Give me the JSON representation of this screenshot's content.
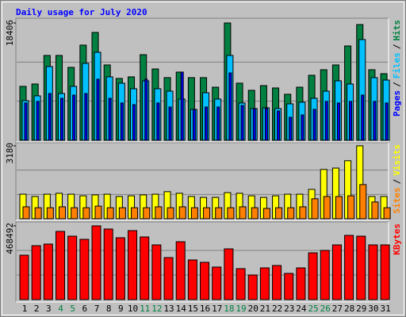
{
  "chart_data": {
    "type": "bar",
    "title": "Daily usage for July 2020",
    "separator": "/",
    "categories": [
      "1",
      "2",
      "3",
      "4",
      "5",
      "6",
      "7",
      "8",
      "9",
      "10",
      "11",
      "12",
      "13",
      "14",
      "15",
      "16",
      "17",
      "18",
      "19",
      "20",
      "21",
      "22",
      "23",
      "24",
      "25",
      "26",
      "27",
      "28",
      "29",
      "30",
      "31"
    ],
    "category_colors": [
      "#000000",
      "#000000",
      "#000000",
      "#008040",
      "#008040",
      "#000000",
      "#000000",
      "#000000",
      "#000000",
      "#000000",
      "#008040",
      "#008040",
      "#000000",
      "#000000",
      "#000000",
      "#000000",
      "#000000",
      "#008040",
      "#008040",
      "#000000",
      "#000000",
      "#000000",
      "#000000",
      "#000000",
      "#008040",
      "#008040",
      "#000000",
      "#000000",
      "#000000",
      "#000000",
      "#000000"
    ],
    "panels": [
      {
        "ylim": [
          0,
          18406
        ],
        "yticks": [
          18406
        ],
        "series": [
          {
            "name": "Hits",
            "color": "#008040",
            "values": [
              8460,
              8830,
              13310,
              13310,
              11440,
              14930,
              16920,
              11820,
              9700,
              9950,
              13430,
              11190,
              9830,
              10700,
              9830,
              9830,
              8330,
              18406,
              8960,
              7840,
              8580,
              8210,
              7220,
              8330,
              10200,
              11070,
              11820,
              14800,
              18160,
              11070,
              10450
            ]
          },
          {
            "name": "Files",
            "color": "#00c0ff",
            "values": [
              6220,
              6970,
              11570,
              7340,
              8460,
              12070,
              13810,
              9950,
              8960,
              8090,
              9330,
              8090,
              7710,
              6470,
              4850,
              7460,
              6470,
              13310,
              5850,
              4980,
              5100,
              4980,
              5720,
              5970,
              6590,
              7710,
              9330,
              8830,
              15800,
              9830,
              9450
            ]
          },
          {
            "name": "Pages",
            "color": "#0000ff",
            "values": [
              5850,
              6100,
              7340,
              6590,
              7090,
              7340,
              9580,
              6590,
              5850,
              5600,
              9580,
              5850,
              5220,
              10700,
              4850,
              5220,
              5220,
              10570,
              5470,
              4980,
              4980,
              4600,
              3610,
              3980,
              4850,
              6100,
              5850,
              6100,
              7090,
              6100,
              5850
            ]
          }
        ]
      },
      {
        "ylim": [
          0,
          3180
        ],
        "yticks": [
          3180
        ],
        "series": [
          {
            "name": "Visits",
            "color": "#ffff00",
            "values": [
              1070,
              970,
              1070,
              1110,
              1070,
              1000,
              1040,
              1070,
              970,
              1000,
              1040,
              1070,
              1180,
              1110,
              970,
              930,
              930,
              1140,
              1110,
              1000,
              930,
              1000,
              1070,
              1070,
              1280,
              2150,
              2210,
              2530,
              3180,
              970,
              970
            ]
          },
          {
            "name": "Sites",
            "color": "#ff8000",
            "values": [
              520,
              480,
              480,
              520,
              480,
              480,
              550,
              480,
              480,
              480,
              480,
              520,
              480,
              520,
              480,
              480,
              480,
              480,
              520,
              480,
              450,
              480,
              480,
              520,
              870,
              970,
              970,
              1000,
              1490,
              730,
              480
            ]
          }
        ]
      },
      {
        "ylim": [
          0,
          468492
        ],
        "yticks": [
          468492
        ],
        "series": [
          {
            "name": "KBytes",
            "color": "#ff0000",
            "values": [
              282100,
              342600,
              352700,
              433300,
              403000,
              382900,
              468492,
              448400,
              393000,
              438300,
              398000,
              347600,
              267000,
              367800,
              251900,
              236800,
              206600,
              322400,
              196500,
              156200,
              201500,
              216600,
              166300,
              201500,
              297200,
              312400,
              347600,
              408100,
              403000,
              347600,
              347600
            ]
          }
        ]
      }
    ]
  }
}
